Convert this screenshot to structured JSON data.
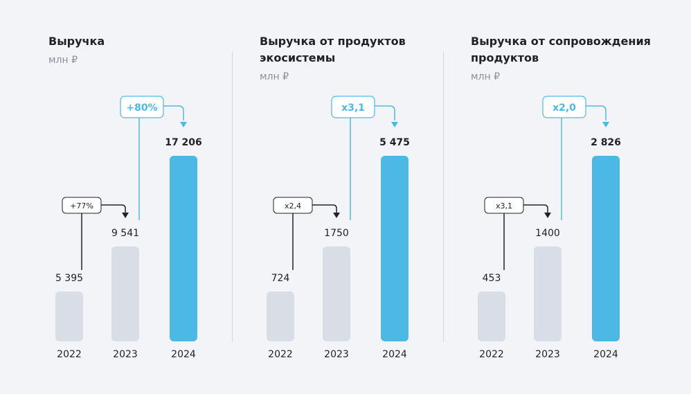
{
  "colors": {
    "past_bar": "#d9dde6",
    "current_bar": "#4cb8e4",
    "accent": "#4cb8e4",
    "dark_connector": "#202227"
  },
  "chart_data": [
    {
      "type": "bar",
      "title": "Выручка",
      "unit": "млн ₽",
      "categories": [
        "2022",
        "2023",
        "2024"
      ],
      "values": [
        5395,
        9541,
        17206
      ],
      "value_labels": [
        "5 395",
        "9 541",
        "17 206"
      ],
      "growth_small": "+77%",
      "growth_big": "+80%"
    },
    {
      "type": "bar",
      "title": "Выручка от продуктов экосистемы",
      "unit": "млн ₽",
      "categories": [
        "2022",
        "2023",
        "2024"
      ],
      "values": [
        724,
        1750,
        5475
      ],
      "value_labels": [
        "724",
        "1750",
        "5 475"
      ],
      "growth_small": "x2,4",
      "growth_big": "x3,1"
    },
    {
      "type": "bar",
      "title": "Выручка от сопровождения продуктов",
      "unit": "млн ₽",
      "categories": [
        "2022",
        "2023",
        "2024"
      ],
      "values": [
        453,
        1400,
        2826
      ],
      "value_labels": [
        "453",
        "1400",
        "2 826"
      ],
      "growth_small": "x3,1",
      "growth_big": "x2,0"
    }
  ]
}
